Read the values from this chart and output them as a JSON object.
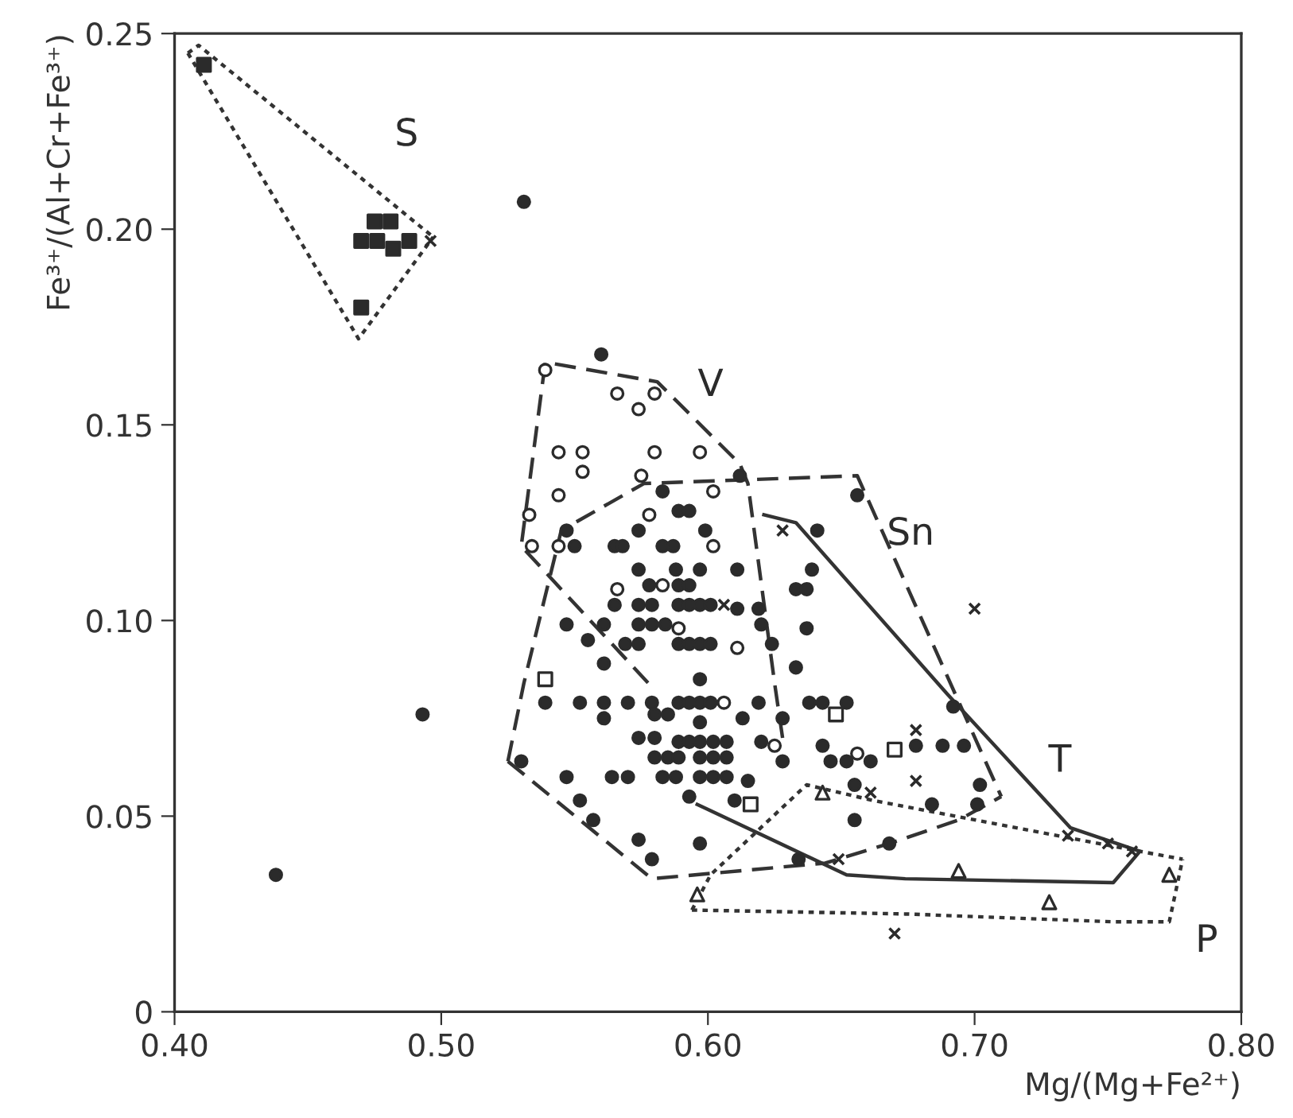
{
  "chart_data": {
    "type": "scatter",
    "xlabel": "Mg/(Mg+Fe²⁺)",
    "ylabel": "Fe³⁺/(Al+Cr+Fe³⁺)",
    "xlim": [
      0.4,
      0.8
    ],
    "ylim": [
      0,
      0.25
    ],
    "xticks": [
      {
        "value": 0.4,
        "label": "0.40"
      },
      {
        "value": 0.5,
        "label": "0.50"
      },
      {
        "value": 0.6,
        "label": "0.60"
      },
      {
        "value": 0.7,
        "label": "0.70"
      },
      {
        "value": 0.8,
        "label": "0.80"
      }
    ],
    "yticks": [
      0,
      {
        "value": 0.05,
        "label": "0.05"
      },
      {
        "value": 0.1,
        "label": "0.10"
      },
      {
        "value": 0.15,
        "label": "0.15"
      },
      {
        "value": 0.2,
        "label": "0.20"
      },
      0.25
    ],
    "grid": false,
    "legend": false,
    "series": [
      {
        "type": "line",
        "line_style": "dotted",
        "color": "#333333",
        "x": [
          0.405,
          0.409,
          0.497
        ],
        "values": [
          0.245,
          0.247,
          0.198
        ]
      },
      {
        "type": "line",
        "line_style": "dotted",
        "color": "#333333",
        "x": [
          0.405,
          0.469,
          0.497
        ],
        "values": [
          0.245,
          0.172,
          0.198
        ]
      },
      {
        "type": "line",
        "line_style": "dashed",
        "color": "#333333",
        "x": [
          0.628,
          0.625,
          0.615,
          0.612,
          0.581,
          0.539,
          0.53,
          0.579
        ],
        "values": [
          0.07,
          0.084,
          0.135,
          0.14,
          0.161,
          0.166,
          0.119,
          0.083
        ]
      },
      {
        "type": "line",
        "line_style": "dashed",
        "color": "#333333",
        "x": [
          0.525,
          0.531,
          0.545,
          0.576,
          0.656,
          0.71
        ],
        "values": [
          0.064,
          0.084,
          0.123,
          0.135,
          0.137,
          0.055
        ]
      },
      {
        "type": "line",
        "line_style": "dashed",
        "color": "#333333",
        "x": [
          0.525,
          0.579,
          0.644,
          0.668,
          0.694,
          0.71
        ],
        "values": [
          0.064,
          0.034,
          0.038,
          0.043,
          0.049,
          0.055
        ]
      },
      {
        "type": "line",
        "line_style": "solid",
        "color": "#333333",
        "x": [
          0.621,
          0.633,
          0.69,
          0.736,
          0.762,
          0.752,
          0.674,
          0.652,
          0.596
        ],
        "values": [
          0.127,
          0.125,
          0.081,
          0.047,
          0.041,
          0.033,
          0.034,
          0.035,
          0.053
        ]
      },
      {
        "type": "line",
        "line_style": "dotted",
        "color": "#333333",
        "x": [
          0.594,
          0.601,
          0.637,
          0.662,
          0.762,
          0.778
        ],
        "values": [
          0.026,
          0.035,
          0.058,
          0.054,
          0.041,
          0.039
        ]
      },
      {
        "type": "line",
        "line_style": "dotted",
        "color": "#333333",
        "x": [
          0.594,
          0.674,
          0.752,
          0.773,
          0.778
        ],
        "values": [
          0.026,
          0.025,
          0.023,
          0.023,
          0.039
        ]
      },
      {
        "marker": "circle",
        "color": "#2b2b2b",
        "x": [
          0.56,
          0.612,
          0.583,
          0.589,
          0.593,
          0.547,
          0.574,
          0.599,
          0.55,
          0.565,
          0.568,
          0.583,
          0.587,
          0.574,
          0.588,
          0.597,
          0.611,
          0.578,
          0.589,
          0.593,
          0.565,
          0.574,
          0.579,
          0.589,
          0.593,
          0.597,
          0.601,
          0.611,
          0.619,
          0.547,
          0.561,
          0.574,
          0.579,
          0.584,
          0.62,
          0.555,
          0.569,
          0.574,
          0.589,
          0.593,
          0.597,
          0.601,
          0.624,
          0.561,
          0.597,
          0.633,
          0.539,
          0.552,
          0.561,
          0.57,
          0.579,
          0.589,
          0.593,
          0.597,
          0.601,
          0.619,
          0.561,
          0.58,
          0.585,
          0.597,
          0.613,
          0.628,
          0.638,
          0.643,
          0.652,
          0.574,
          0.58,
          0.589,
          0.593,
          0.597,
          0.602,
          0.607,
          0.62,
          0.643,
          0.58,
          0.585,
          0.589,
          0.597,
          0.602,
          0.607,
          0.628,
          0.646,
          0.652,
          0.661,
          0.53,
          0.547,
          0.564,
          0.57,
          0.583,
          0.588,
          0.597,
          0.602,
          0.607,
          0.615,
          0.552,
          0.593,
          0.61,
          0.557,
          0.574,
          0.597,
          0.579,
          0.634,
          0.655,
          0.655,
          0.668,
          0.656,
          0.641,
          0.639,
          0.633,
          0.637,
          0.637,
          0.692,
          0.678,
          0.688,
          0.696,
          0.702,
          0.701,
          0.684,
          0.531,
          0.438,
          0.493
        ],
        "values": [
          0.168,
          0.137,
          0.133,
          0.128,
          0.128,
          0.123,
          0.123,
          0.123,
          0.119,
          0.119,
          0.119,
          0.119,
          0.119,
          0.113,
          0.113,
          0.113,
          0.113,
          0.109,
          0.109,
          0.109,
          0.104,
          0.104,
          0.104,
          0.104,
          0.104,
          0.104,
          0.104,
          0.103,
          0.103,
          0.099,
          0.099,
          0.099,
          0.099,
          0.099,
          0.099,
          0.095,
          0.094,
          0.094,
          0.094,
          0.094,
          0.094,
          0.094,
          0.094,
          0.089,
          0.085,
          0.088,
          0.079,
          0.079,
          0.079,
          0.079,
          0.079,
          0.079,
          0.079,
          0.079,
          0.079,
          0.079,
          0.075,
          0.076,
          0.076,
          0.074,
          0.075,
          0.075,
          0.079,
          0.079,
          0.079,
          0.07,
          0.07,
          0.069,
          0.069,
          0.069,
          0.069,
          0.069,
          0.069,
          0.068,
          0.065,
          0.065,
          0.065,
          0.065,
          0.065,
          0.065,
          0.064,
          0.064,
          0.064,
          0.064,
          0.064,
          0.06,
          0.06,
          0.06,
          0.06,
          0.06,
          0.06,
          0.06,
          0.06,
          0.059,
          0.054,
          0.055,
          0.054,
          0.049,
          0.044,
          0.043,
          0.039,
          0.039,
          0.058,
          0.049,
          0.043,
          0.132,
          0.123,
          0.113,
          0.108,
          0.108,
          0.098,
          0.078,
          0.068,
          0.068,
          0.068,
          0.058,
          0.053,
          0.053,
          0.207,
          0.035,
          0.076
        ]
      },
      {
        "marker": "circle",
        "color": "#ffffff",
        "x": [
          0.539,
          0.566,
          0.58,
          0.574,
          0.544,
          0.553,
          0.58,
          0.597,
          0.553,
          0.575,
          0.544,
          0.602,
          0.578,
          0.533,
          0.534,
          0.544,
          0.602,
          0.566,
          0.583,
          0.589,
          0.611,
          0.606,
          0.625,
          0.656
        ],
        "values": [
          0.164,
          0.158,
          0.158,
          0.154,
          0.143,
          0.143,
          0.143,
          0.143,
          0.138,
          0.137,
          0.132,
          0.133,
          0.127,
          0.127,
          0.119,
          0.119,
          0.119,
          0.108,
          0.109,
          0.098,
          0.093,
          0.079,
          0.068,
          0.066
        ]
      },
      {
        "marker": "square",
        "color": "#ffffff",
        "x": [
          0.539,
          0.648,
          0.67,
          0.616
        ],
        "values": [
          0.085,
          0.076,
          0.067,
          0.053
        ]
      },
      {
        "marker": "square",
        "color": "#2b2b2b",
        "x": [
          0.411,
          0.475,
          0.481,
          0.47,
          0.476,
          0.482,
          0.488,
          0.47
        ],
        "values": [
          0.242,
          0.202,
          0.202,
          0.197,
          0.197,
          0.195,
          0.197,
          0.18
        ]
      },
      {
        "marker": "cross",
        "color": "#2b2b2b",
        "x": [
          0.496,
          0.628,
          0.606,
          0.7,
          0.678,
          0.678,
          0.661,
          0.649,
          0.67,
          0.735,
          0.75,
          0.759
        ],
        "values": [
          0.197,
          0.123,
          0.104,
          0.103,
          0.072,
          0.059,
          0.056,
          0.039,
          0.02,
          0.045,
          0.043,
          0.041
        ]
      },
      {
        "marker": "triangle",
        "color": "#ffffff",
        "x": [
          0.643,
          0.596,
          0.694,
          0.728,
          0.773
        ],
        "values": [
          0.056,
          0.03,
          0.036,
          0.028,
          0.035
        ]
      }
    ],
    "annotations": [
      "S",
      "V",
      "Sn",
      "T",
      "P"
    ]
  }
}
